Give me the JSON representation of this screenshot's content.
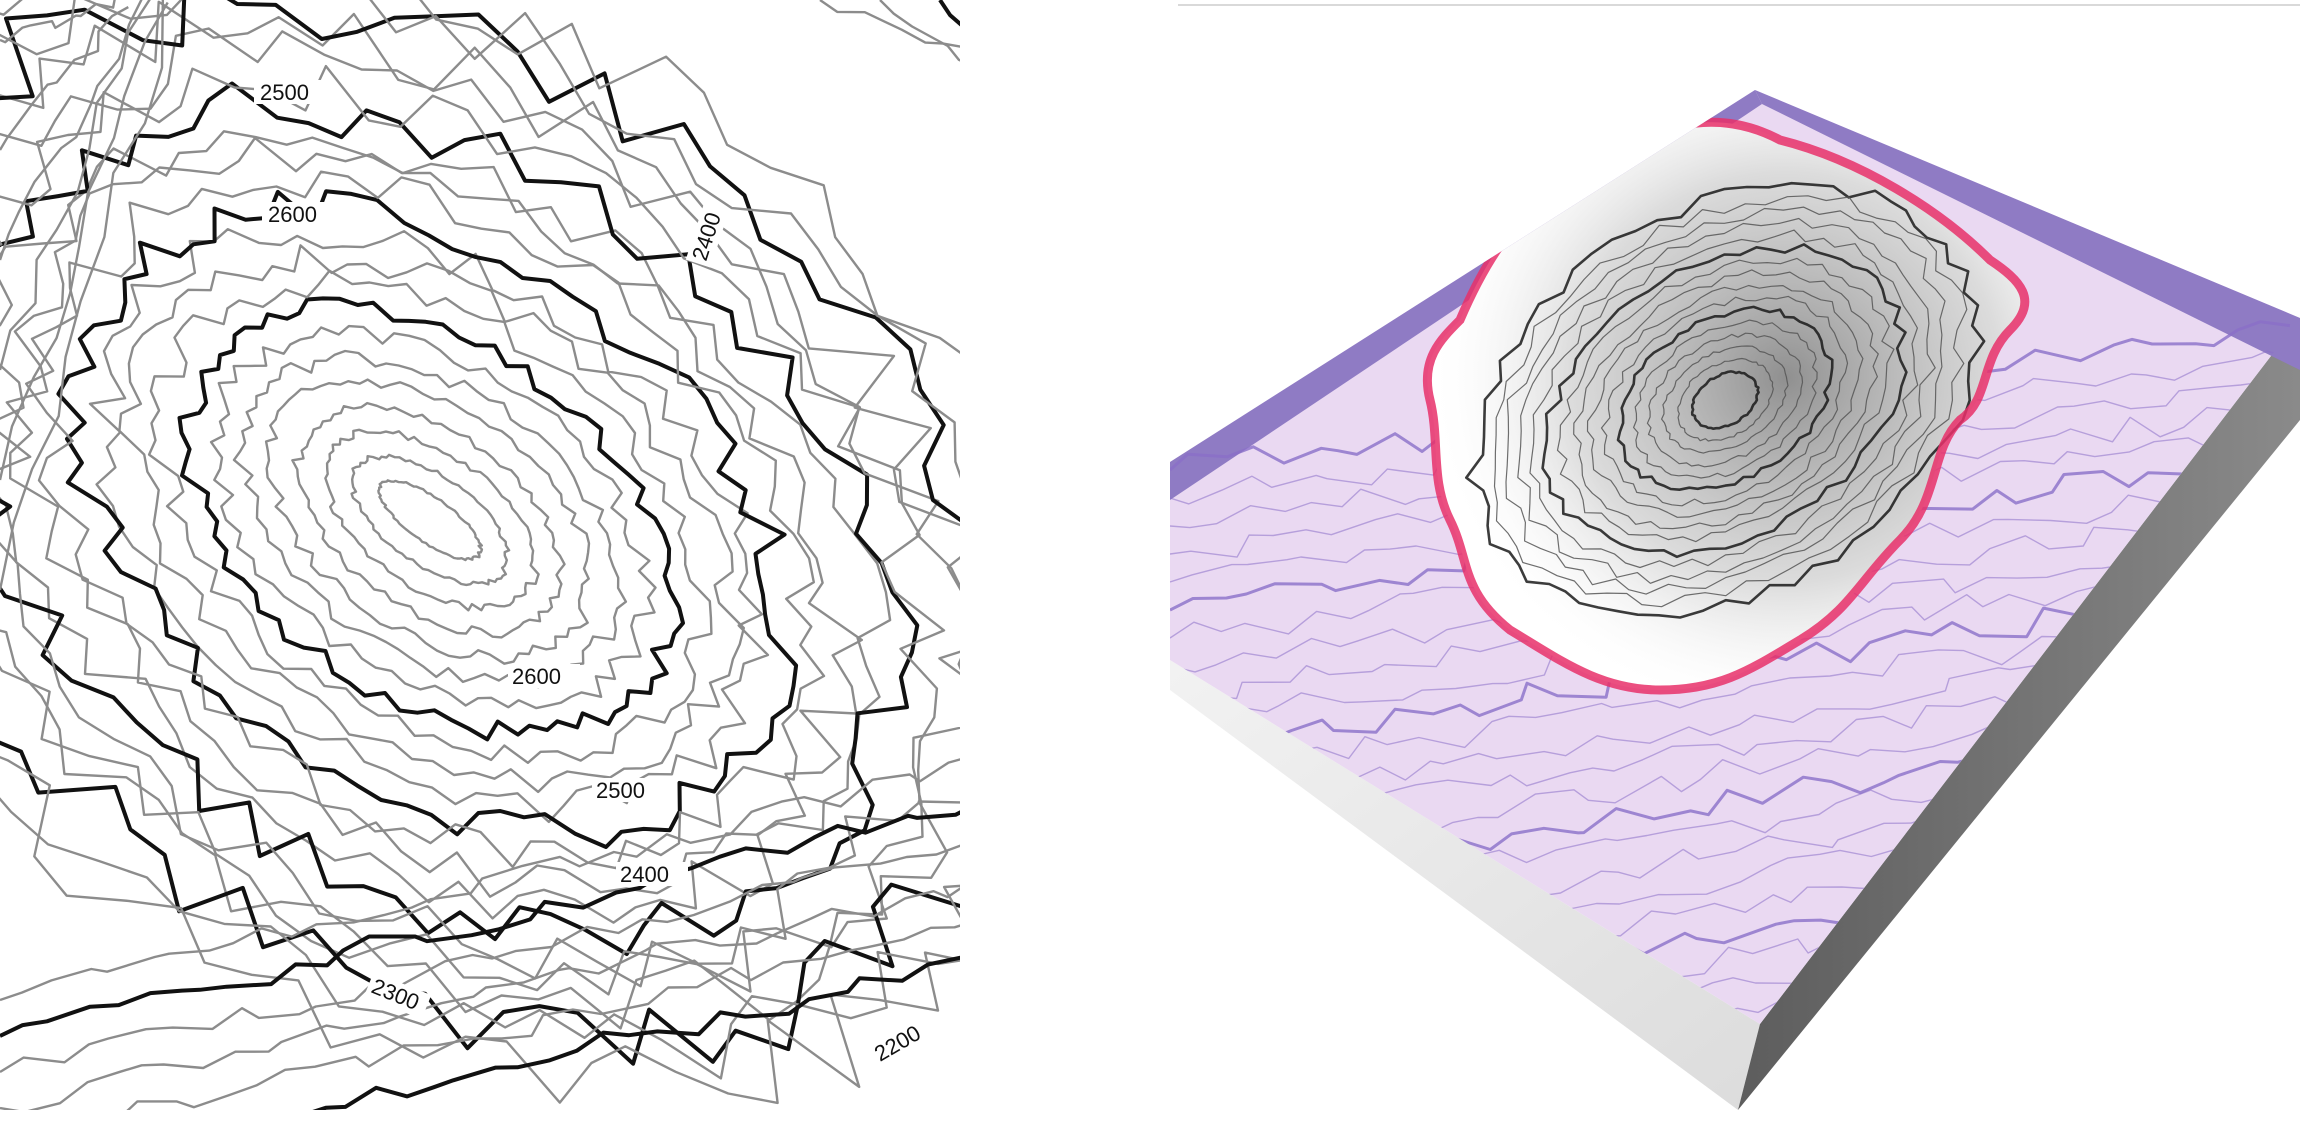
{
  "contour_map": {
    "labels": {
      "l2500_top": "2500",
      "l2600_top": "2600",
      "l2400_right": "2400",
      "l2600_bottom": "2600",
      "l2500_bottom": "2500",
      "l2400_bottom": "2400",
      "l2300": "2300",
      "l2200": "2200"
    },
    "index_contour_color": "#111111",
    "intermediate_contour_color": "#8c8c8c"
  },
  "terrain_model": {
    "top_face_color": "#ead9f2",
    "edge_band_color": "#8f7bc4",
    "front_side_color": "#ececec",
    "right_side_color": "#6f6f6f",
    "highlight_contour_color": "#e8306a",
    "base_contour_color": "#8a6fc8"
  }
}
